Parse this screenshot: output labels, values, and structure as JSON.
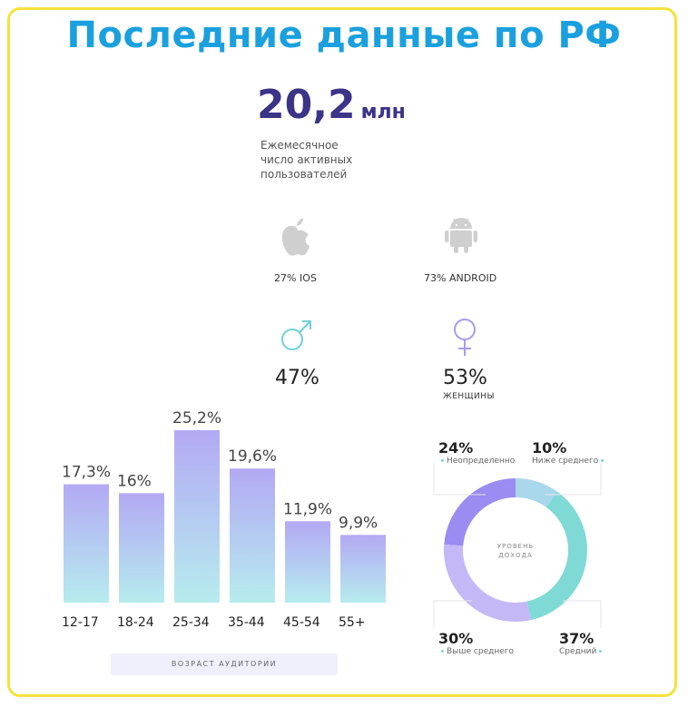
{
  "title": "Последние данные по РФ",
  "headline": {
    "value": "20,2",
    "unit": "млн",
    "desc_lines": [
      "Ежемесячное",
      "число активных",
      "пользователей"
    ]
  },
  "platforms": [
    {
      "icon": "apple-icon",
      "label": "27% IOS"
    },
    {
      "icon": "android-icon",
      "label": "73% ANDROID"
    }
  ],
  "gender": [
    {
      "icon": "male-symbol-icon",
      "value": "47%",
      "sub": "",
      "color": "#6fd0d8"
    },
    {
      "icon": "female-symbol-icon",
      "value": "53%",
      "sub": "ЖЕНЩИНЫ",
      "color": "#a89af0"
    }
  ],
  "age_caption": "ВОЗРАСТ АУДИТОРИИ",
  "donut_caption": [
    "УРОВЕНЬ",
    "ДОХОДА"
  ],
  "income_labels": [
    {
      "value": "24%",
      "label": "Неопределенно"
    },
    {
      "value": "10%",
      "label": "Ниже среднего"
    },
    {
      "value": "30%",
      "label": "Выше среднего"
    },
    {
      "value": "37%",
      "label": "Средний"
    }
  ],
  "colors": {
    "title": "#1aa0de",
    "frame": "#f4e23c",
    "headline": "#3b3487",
    "bar_top": "#b3a9f4",
    "bar_bottom": "#b6ecee"
  },
  "chart_data": [
    {
      "type": "bar",
      "categories": [
        "12-17",
        "18-24",
        "25-34",
        "35-44",
        "45-54",
        "55+"
      ],
      "values": [
        17.3,
        16,
        25.2,
        19.6,
        11.9,
        9.9
      ],
      "value_labels": [
        "17,3%",
        "16%",
        "25,2%",
        "19,6%",
        "11,9%",
        "9,9%"
      ],
      "xlabel": "ВОЗРАСТ АУДИТОРИИ",
      "ylim": [
        0,
        25.2
      ]
    },
    {
      "type": "pie",
      "categories": [
        "Неопределенно",
        "Ниже среднего",
        "Средний",
        "Выше среднего"
      ],
      "values": [
        24,
        10,
        37,
        30
      ],
      "colors": [
        "#9a8cf0",
        "#a9d7ec",
        "#7fdad6",
        "#c4b8f6"
      ],
      "title": "УРОВЕНЬ ДОХОДА"
    }
  ]
}
